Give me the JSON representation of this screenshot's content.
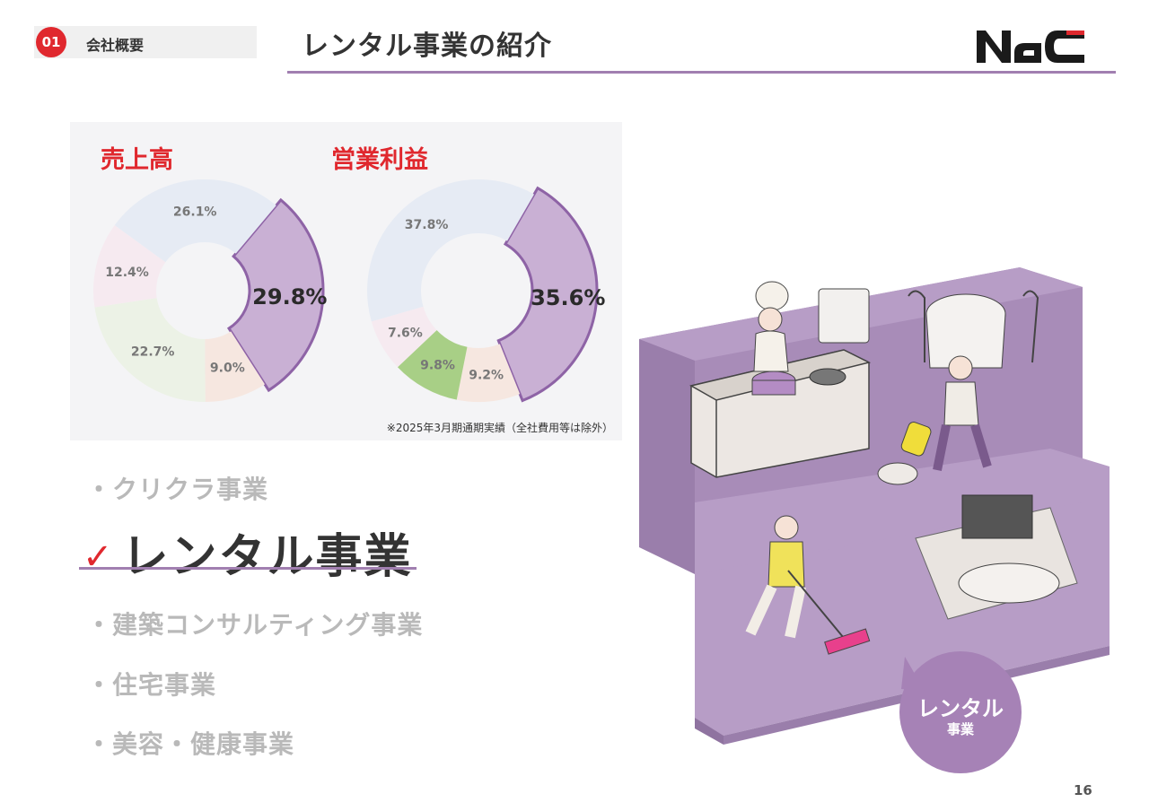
{
  "header": {
    "section_number": "01",
    "section_label": "会社概要",
    "title": "レンタル事業の紹介",
    "logo_text": "NAC"
  },
  "chart_data": [
    {
      "type": "pie",
      "title": "売上高",
      "labels": [
        "29.8%",
        "9.0%",
        "22.7%",
        "12.4%",
        "26.1%"
      ],
      "values": [
        29.8,
        9.0,
        22.7,
        12.4,
        26.1
      ],
      "highlight": "29.8%",
      "colors": [
        "#c9b0d4",
        "#f6e7e0",
        "#ecf2e6",
        "#f6eaf0",
        "#e6ebf4"
      ]
    },
    {
      "type": "pie",
      "title": "営業利益",
      "labels": [
        "35.6%",
        "9.2%",
        "9.8%",
        "7.6%",
        "37.8%"
      ],
      "values": [
        35.6,
        9.2,
        9.8,
        7.6,
        37.8
      ],
      "highlight": "35.6%",
      "colors": [
        "#c9b0d4",
        "#f6e7e0",
        "#a8cf86",
        "#f6eaf0",
        "#e6ebf4"
      ]
    }
  ],
  "chart_footnote": "※2025年3月期通期実績（全社費用等は除外）",
  "businesses": {
    "item1": "・クリクラ事業",
    "active_check": "✓",
    "active": "レンタル事業",
    "item3": "・建築コンサルティング事業",
    "item4": "・住宅事業",
    "item5": "・美容・健康事業"
  },
  "bubble": {
    "line1": "レンタル",
    "line2": "事業"
  },
  "page_number": "16",
  "colors": {
    "accent_red": "#e0282e",
    "accent_purple": "#a17fb0",
    "floor": "#b79dc6"
  }
}
